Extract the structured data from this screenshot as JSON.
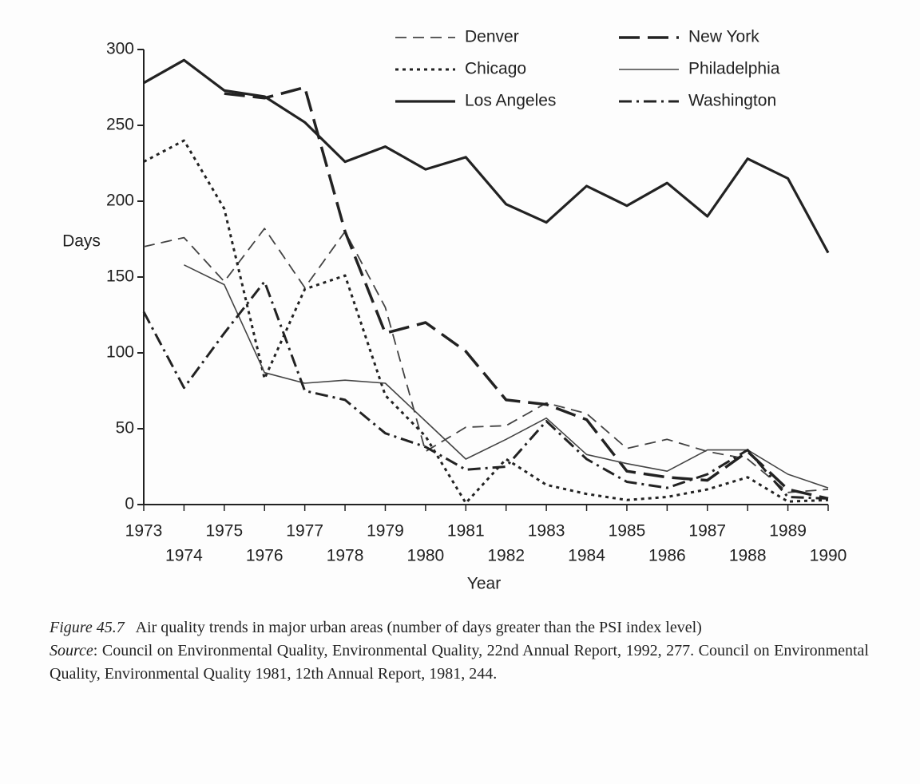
{
  "chart_data": {
    "type": "line",
    "x_label": "Year",
    "y_label": "Days",
    "x": [
      1973,
      1974,
      1975,
      1976,
      1977,
      1978,
      1979,
      1980,
      1981,
      1982,
      1983,
      1984,
      1985,
      1986,
      1987,
      1988,
      1989,
      1990
    ],
    "xlim": [
      1973,
      1990
    ],
    "xticks": [
      1973,
      1974,
      1975,
      1976,
      1977,
      1978,
      1979,
      1980,
      1981,
      1982,
      1983,
      1984,
      1985,
      1986,
      1987,
      1988,
      1989,
      1990
    ],
    "ylim": [
      0,
      300
    ],
    "yticks": [
      0,
      50,
      100,
      150,
      200,
      250,
      300
    ],
    "series": [
      {
        "name": "Denver",
        "color": "#444",
        "dash": "14 8",
        "width": 1.8,
        "values": [
          170,
          176,
          147,
          182,
          143,
          180,
          130,
          35,
          51,
          52,
          67,
          60,
          37,
          43,
          35,
          30,
          8,
          10
        ]
      },
      {
        "name": "New York",
        "color": "#222",
        "dash": "26 10",
        "width": 3.5,
        "values": [
          null,
          null,
          271,
          268,
          275,
          180,
          113,
          120,
          101,
          69,
          66,
          56,
          22,
          18,
          16,
          35,
          10,
          4
        ]
      },
      {
        "name": "Chicago",
        "color": "#222",
        "dash": "4 5",
        "width": 3,
        "values": [
          226,
          240,
          195,
          83,
          142,
          151,
          72,
          45,
          1,
          30,
          13,
          7,
          3,
          5,
          10,
          18,
          2,
          3
        ]
      },
      {
        "name": "Philadelphia",
        "color": "#444",
        "dash": "none",
        "width": 1.6,
        "values": [
          null,
          158,
          145,
          87,
          80,
          82,
          80,
          55,
          30,
          43,
          57,
          33,
          27,
          22,
          36,
          36,
          20,
          11
        ]
      },
      {
        "name": "Los Angeles",
        "color": "#222",
        "dash": "none",
        "width": 3.2,
        "values": [
          278,
          293,
          273,
          269,
          252,
          226,
          236,
          221,
          229,
          198,
          186,
          210,
          197,
          212,
          190,
          228,
          215,
          166
        ]
      },
      {
        "name": "Washington",
        "color": "#222",
        "dash": "16 6 3 6",
        "width": 3,
        "values": [
          127,
          77,
          113,
          147,
          75,
          69,
          47,
          38,
          23,
          25,
          55,
          30,
          15,
          11,
          20,
          36,
          5,
          4
        ]
      }
    ]
  },
  "caption": {
    "figure_label": "Figure 45.7",
    "text": "Air quality trends in major urban areas (number of days greater than the PSI index level)"
  },
  "source": {
    "label": "Source",
    "text": ": Council on Environmental Quality, Environmental Quality, 22nd Annual Report, 1992, 277. Council on Environmental Quality, Environmental Quality 1981, 12th Annual Report, 1981, 244."
  }
}
